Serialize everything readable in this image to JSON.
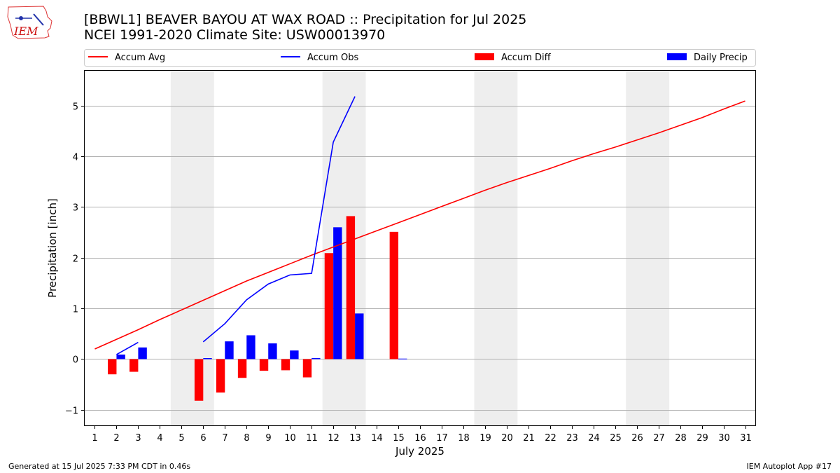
{
  "header": {
    "title_line1": "[BBWL1] BEAVER BAYOU AT WAX ROAD :: Precipitation for Jul 2025",
    "title_line2": "NCEI 1991-2020 Climate Site: USW00013970",
    "logo_text": "IEM"
  },
  "footer": {
    "generated": "Generated at 15 Jul 2025 7:33 PM CDT in 0.46s",
    "app": "IEM Autoplot App #17"
  },
  "chart_data": {
    "type": "bar",
    "title": "",
    "xlabel": "July 2025",
    "ylabel": "Precipitation [inch]",
    "xlim": [
      0.5,
      31.5
    ],
    "ylim": [
      -1.32,
      5.7
    ],
    "yticks": [
      -1,
      0,
      1,
      2,
      3,
      4,
      5
    ],
    "ytick_labels": [
      "−1",
      "0",
      "1",
      "2",
      "3",
      "4",
      "5"
    ],
    "x": [
      1,
      2,
      3,
      4,
      5,
      6,
      7,
      8,
      9,
      10,
      11,
      12,
      13,
      14,
      15,
      16,
      17,
      18,
      19,
      20,
      21,
      22,
      23,
      24,
      25,
      26,
      27,
      28,
      29,
      30,
      31
    ],
    "x_tick_labels": [
      "1",
      "2",
      "3",
      "4",
      "5",
      "6",
      "7",
      "8",
      "9",
      "10",
      "11",
      "12",
      "13",
      "14",
      "15",
      "16",
      "17",
      "18",
      "19",
      "20",
      "21",
      "22",
      "23",
      "24",
      "25",
      "26",
      "27",
      "28",
      "29",
      "30",
      "31"
    ],
    "grid": "horizontal",
    "legend_position": "top",
    "weekend_shading": [
      [
        4.5,
        6.5
      ],
      [
        11.5,
        13.5
      ],
      [
        18.5,
        20.5
      ],
      [
        25.5,
        27.5
      ]
    ],
    "series": [
      {
        "name": "Accum Avg",
        "kind": "line",
        "color": "#ff0000",
        "x": [
          1,
          2,
          3,
          4,
          5,
          6,
          7,
          8,
          9,
          10,
          11,
          12,
          13,
          14,
          15,
          16,
          17,
          18,
          19,
          20,
          21,
          22,
          23,
          24,
          25,
          26,
          27,
          28,
          29,
          30,
          31
        ],
        "values": [
          0.2,
          0.39,
          0.58,
          0.78,
          0.97,
          1.16,
          1.35,
          1.54,
          1.71,
          1.88,
          2.05,
          2.21,
          2.37,
          2.53,
          2.69,
          2.85,
          3.01,
          3.17,
          3.33,
          3.48,
          3.62,
          3.76,
          3.91,
          4.05,
          4.18,
          4.32,
          4.46,
          4.61,
          4.76,
          4.93,
          5.09
        ]
      },
      {
        "name": "Accum Obs",
        "kind": "line",
        "color": "#0000ff",
        "segments": [
          {
            "x": [
              2,
              3
            ],
            "values": [
              0.09,
              0.33
            ]
          },
          {
            "x": [
              6,
              7,
              8,
              9,
              10,
              11,
              12,
              13
            ],
            "values": [
              0.34,
              0.7,
              1.17,
              1.48,
              1.66,
              1.69,
              4.28,
              5.18
            ]
          }
        ]
      },
      {
        "name": "Accum Diff",
        "kind": "bar",
        "color": "#ff0000",
        "x": [
          2,
          3,
          6,
          7,
          8,
          9,
          10,
          11,
          12,
          13,
          15
        ],
        "values": [
          -0.3,
          -0.25,
          -0.82,
          -0.66,
          -0.37,
          -0.23,
          -0.22,
          -0.36,
          2.09,
          2.82,
          2.51
        ]
      },
      {
        "name": "Daily Precip",
        "kind": "bar",
        "color": "#0000ff",
        "x": [
          2,
          3,
          6,
          7,
          8,
          9,
          10,
          11,
          12,
          13,
          15
        ],
        "values": [
          0.09,
          0.23,
          0.02,
          0.35,
          0.47,
          0.31,
          0.17,
          0.02,
          2.6,
          0.9,
          0.01
        ]
      }
    ]
  }
}
